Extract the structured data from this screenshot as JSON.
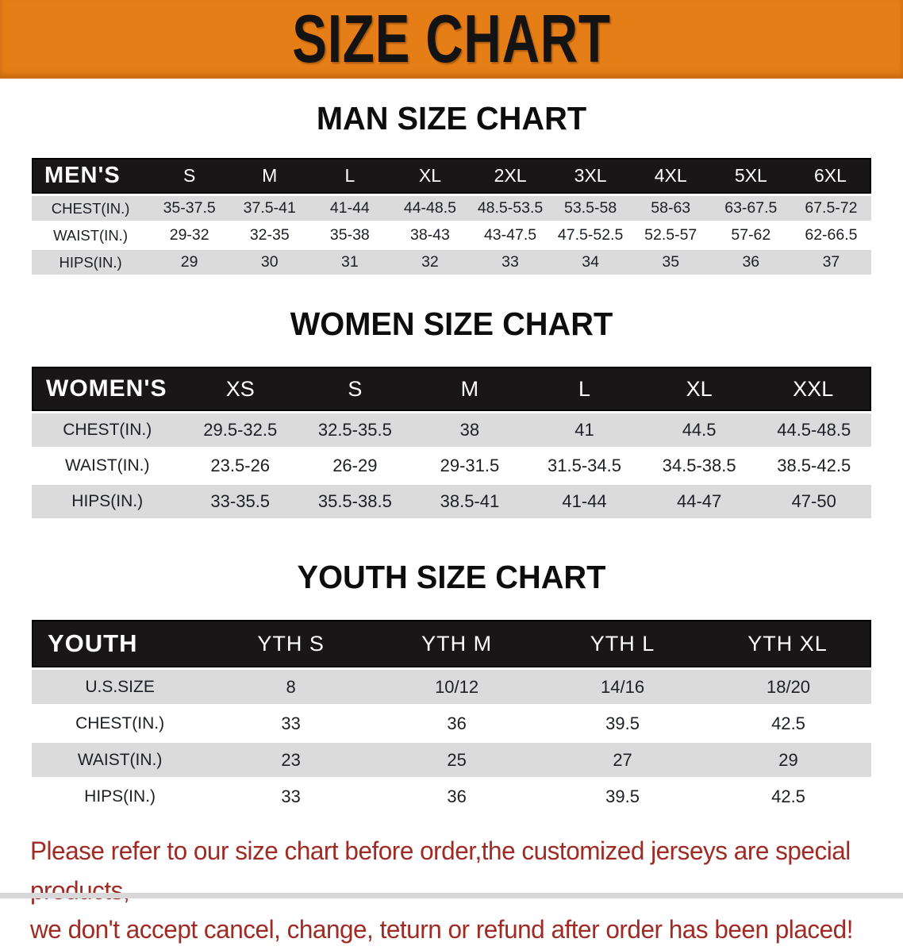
{
  "banner": {
    "title": "SIZE CHART"
  },
  "colors": {
    "banner_bg": "#E67E17",
    "table_header_bg": "#191617",
    "row_stripe": "#DBDBDC",
    "disclaimer_text": "#A02B24"
  },
  "sections": [
    {
      "title": "MAN SIZE CHART",
      "table": {
        "header_label": "MEN'S",
        "columns": [
          "S",
          "M",
          "L",
          "XL",
          "2XL",
          "3XL",
          "4XL",
          "5XL",
          "6XL"
        ],
        "rows": [
          {
            "label": "CHEST(IN.)",
            "values": [
              "35-37.5",
              "37.5-41",
              "41-44",
              "44-48.5",
              "48.5-53.5",
              "53.5-58",
              "58-63",
              "63-67.5",
              "67.5-72"
            ]
          },
          {
            "label": "WAIST(IN.)",
            "values": [
              "29-32",
              "32-35",
              "35-38",
              "38-43",
              "43-47.5",
              "47.5-52.5",
              "52.5-57",
              "57-62",
              "62-66.5"
            ]
          },
          {
            "label": "HIPS(IN.)",
            "values": [
              "29",
              "30",
              "31",
              "32",
              "33",
              "34",
              "35",
              "36",
              "37"
            ]
          }
        ]
      }
    },
    {
      "title": "WOMEN SIZE CHART",
      "table": {
        "header_label": "WOMEN'S",
        "columns": [
          "XS",
          "S",
          "M",
          "L",
          "XL",
          "XXL"
        ],
        "rows": [
          {
            "label": "CHEST(IN.)",
            "values": [
              "29.5-32.5",
              "32.5-35.5",
              "38",
              "41",
              "44.5",
              "44.5-48.5"
            ]
          },
          {
            "label": "WAIST(IN.)",
            "values": [
              "23.5-26",
              "26-29",
              "29-31.5",
              "31.5-34.5",
              "34.5-38.5",
              "38.5-42.5"
            ]
          },
          {
            "label": "HIPS(IN.)",
            "values": [
              "33-35.5",
              "35.5-38.5",
              "38.5-41",
              "41-44",
              "44-47",
              "47-50"
            ]
          }
        ]
      }
    },
    {
      "title": "YOUTH SIZE CHART",
      "table": {
        "header_label": "YOUTH",
        "columns": [
          "YTH S",
          "YTH M",
          "YTH L",
          "YTH XL"
        ],
        "rows": [
          {
            "label": "U.S.SIZE",
            "values": [
              "8",
              "10/12",
              "14/16",
              "18/20"
            ]
          },
          {
            "label": "CHEST(IN.)",
            "values": [
              "33",
              "36",
              "39.5",
              "42.5"
            ]
          },
          {
            "label": "WAIST(IN.)",
            "values": [
              "23",
              "25",
              "27",
              "29"
            ]
          },
          {
            "label": "HIPS(IN.)",
            "values": [
              "33",
              "36",
              "39.5",
              "42.5"
            ]
          }
        ]
      }
    }
  ],
  "footer": {
    "line1": "Please refer to our size chart before order,the customized jerseys are special products,",
    "line2": "we don't accept cancel, change, teturn or refund after order has been placed!"
  }
}
